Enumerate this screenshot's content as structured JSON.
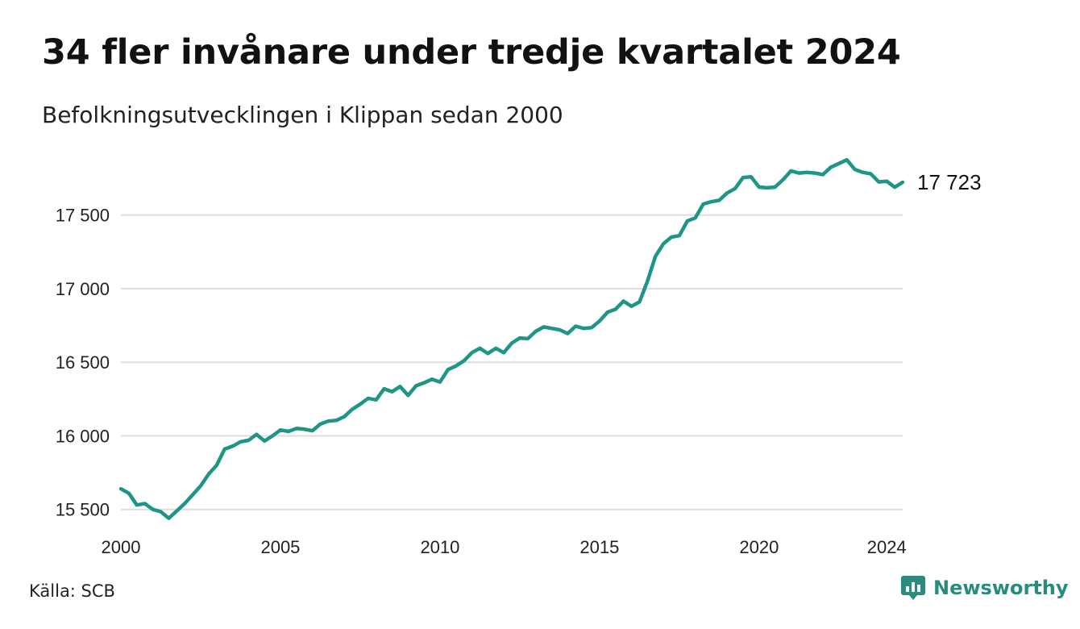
{
  "title": "34 fler invånare under tredje kvartalet 2024",
  "subtitle": "Befolkningsutvecklingen i Klippan sedan 2000",
  "source": "Källa: SCB",
  "brand": {
    "name": "Newsworthy",
    "icon": "newsworthy-logo-icon",
    "color": "#2a8a7e"
  },
  "colors": {
    "line": "#1f9585",
    "grid": "#dddddd"
  },
  "end_label": "17 723",
  "chart_data": {
    "type": "line",
    "title": "34 fler invånare under tredje kvartalet 2024",
    "subtitle": "Befolkningsutvecklingen i Klippan sedan 2000",
    "xlabel": "",
    "ylabel": "",
    "x_ticks": [
      2000,
      2005,
      2010,
      2015,
      2020,
      2024
    ],
    "x_tick_labels": [
      "2000",
      "2005",
      "2010",
      "2015",
      "2020",
      "2024"
    ],
    "y_ticks": [
      15500,
      16000,
      16500,
      17000,
      17500
    ],
    "y_tick_labels": [
      "15 500",
      "16 000",
      "16 500",
      "17 000",
      "17 500"
    ],
    "xlim": [
      2000,
      2024.5
    ],
    "ylim": [
      15400,
      17920
    ],
    "grid": "horizontal",
    "legend": "none",
    "series": [
      {
        "values": [
          [
            2000.0,
            15640
          ],
          [
            2000.25,
            15610
          ],
          [
            2000.5,
            15530
          ],
          [
            2000.75,
            15540
          ],
          [
            2001.0,
            15500
          ],
          [
            2001.25,
            15485
          ],
          [
            2001.5,
            15440
          ],
          [
            2001.75,
            15490
          ],
          [
            2002.0,
            15540
          ],
          [
            2002.25,
            15600
          ],
          [
            2002.5,
            15660
          ],
          [
            2002.75,
            15740
          ],
          [
            2003.0,
            15800
          ],
          [
            2003.25,
            15910
          ],
          [
            2003.5,
            15930
          ],
          [
            2003.75,
            15960
          ],
          [
            2004.0,
            15970
          ],
          [
            2004.25,
            16010
          ],
          [
            2004.5,
            15965
          ],
          [
            2004.75,
            16000
          ],
          [
            2005.0,
            16040
          ],
          [
            2005.25,
            16030
          ],
          [
            2005.5,
            16050
          ],
          [
            2005.75,
            16045
          ],
          [
            2006.0,
            16035
          ],
          [
            2006.25,
            16080
          ],
          [
            2006.5,
            16100
          ],
          [
            2006.75,
            16105
          ],
          [
            2007.0,
            16130
          ],
          [
            2007.25,
            16180
          ],
          [
            2007.5,
            16215
          ],
          [
            2007.75,
            16255
          ],
          [
            2008.0,
            16245
          ],
          [
            2008.25,
            16320
          ],
          [
            2008.5,
            16300
          ],
          [
            2008.75,
            16335
          ],
          [
            2009.0,
            16275
          ],
          [
            2009.25,
            16340
          ],
          [
            2009.5,
            16360
          ],
          [
            2009.75,
            16385
          ],
          [
            2010.0,
            16365
          ],
          [
            2010.25,
            16450
          ],
          [
            2010.5,
            16475
          ],
          [
            2010.75,
            16510
          ],
          [
            2011.0,
            16565
          ],
          [
            2011.25,
            16595
          ],
          [
            2011.5,
            16560
          ],
          [
            2011.75,
            16595
          ],
          [
            2012.0,
            16565
          ],
          [
            2012.25,
            16630
          ],
          [
            2012.5,
            16665
          ],
          [
            2012.75,
            16660
          ],
          [
            2013.0,
            16710
          ],
          [
            2013.25,
            16740
          ],
          [
            2013.5,
            16730
          ],
          [
            2013.75,
            16720
          ],
          [
            2014.0,
            16695
          ],
          [
            2014.25,
            16745
          ],
          [
            2014.5,
            16730
          ],
          [
            2014.75,
            16735
          ],
          [
            2015.0,
            16780
          ],
          [
            2015.25,
            16840
          ],
          [
            2015.5,
            16860
          ],
          [
            2015.75,
            16915
          ],
          [
            2016.0,
            16880
          ],
          [
            2016.25,
            16910
          ],
          [
            2016.5,
            17050
          ],
          [
            2016.75,
            17220
          ],
          [
            2017.0,
            17305
          ],
          [
            2017.25,
            17350
          ],
          [
            2017.5,
            17360
          ],
          [
            2017.75,
            17460
          ],
          [
            2018.0,
            17480
          ],
          [
            2018.25,
            17575
          ],
          [
            2018.5,
            17590
          ],
          [
            2018.75,
            17600
          ],
          [
            2019.0,
            17650
          ],
          [
            2019.25,
            17680
          ],
          [
            2019.5,
            17755
          ],
          [
            2019.75,
            17760
          ],
          [
            2020.0,
            17690
          ],
          [
            2020.25,
            17685
          ],
          [
            2020.5,
            17690
          ],
          [
            2020.75,
            17740
          ],
          [
            2021.0,
            17800
          ],
          [
            2021.25,
            17785
          ],
          [
            2021.5,
            17790
          ],
          [
            2021.75,
            17785
          ],
          [
            2022.0,
            17775
          ],
          [
            2022.25,
            17825
          ],
          [
            2022.5,
            17850
          ],
          [
            2022.75,
            17875
          ],
          [
            2023.0,
            17810
          ],
          [
            2023.25,
            17790
          ],
          [
            2023.5,
            17780
          ],
          [
            2023.75,
            17725
          ],
          [
            2024.0,
            17730
          ],
          [
            2024.25,
            17689
          ],
          [
            2024.5,
            17723
          ]
        ]
      }
    ]
  }
}
